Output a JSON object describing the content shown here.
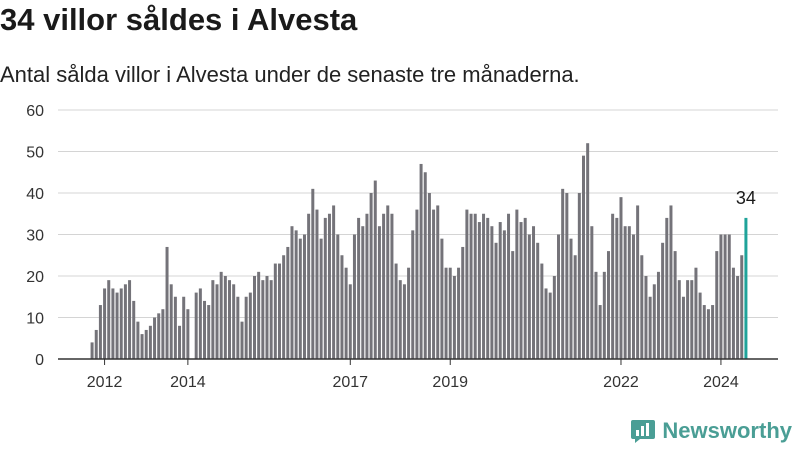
{
  "header": {
    "title": "34 villor såldes i Alvesta",
    "subtitle": "Antal sålda villor i Alvesta under de senaste tre månaderna."
  },
  "brand": {
    "name": "Newsworthy",
    "color": "#4a9e95"
  },
  "chart_data": {
    "type": "bar",
    "ylim": [
      0,
      60
    ],
    "y_ticks": [
      0,
      10,
      20,
      30,
      40,
      50,
      60
    ],
    "x_tick_labels": [
      "2012",
      "2014",
      "2017",
      "2019",
      "2022",
      "2024"
    ],
    "x_tick_index": [
      3,
      23,
      62,
      86,
      127,
      151
    ],
    "bar_color": "#747379",
    "highlight_color": "#1fa39a",
    "highlight_label": "34",
    "values": [
      4,
      7,
      13,
      17,
      19,
      17,
      16,
      17,
      18,
      19,
      14,
      9,
      6,
      7,
      8,
      10,
      11,
      12,
      27,
      18,
      15,
      8,
      15,
      12,
      0,
      16,
      17,
      14,
      13,
      19,
      18,
      21,
      20,
      19,
      18,
      15,
      9,
      15,
      16,
      20,
      21,
      19,
      20,
      19,
      23,
      23,
      25,
      27,
      32,
      31,
      29,
      30,
      35,
      41,
      36,
      29,
      34,
      35,
      37,
      30,
      25,
      22,
      18,
      30,
      34,
      32,
      35,
      40,
      43,
      32,
      35,
      37,
      35,
      23,
      19,
      18,
      22,
      31,
      36,
      47,
      45,
      40,
      36,
      37,
      29,
      22,
      22,
      20,
      22,
      27,
      36,
      35,
      35,
      33,
      35,
      34,
      32,
      28,
      33,
      31,
      35,
      26,
      36,
      33,
      34,
      30,
      32,
      28,
      23,
      17,
      16,
      20,
      30,
      41,
      40,
      29,
      25,
      40,
      49,
      52,
      32,
      21,
      13,
      21,
      26,
      35,
      34,
      39,
      32,
      32,
      30,
      37,
      25,
      20,
      15,
      18,
      21,
      28,
      34,
      37,
      26,
      19,
      15,
      19,
      19,
      22,
      16,
      13,
      12,
      13,
      26,
      30,
      30,
      30,
      22,
      20,
      25,
      34
    ]
  }
}
